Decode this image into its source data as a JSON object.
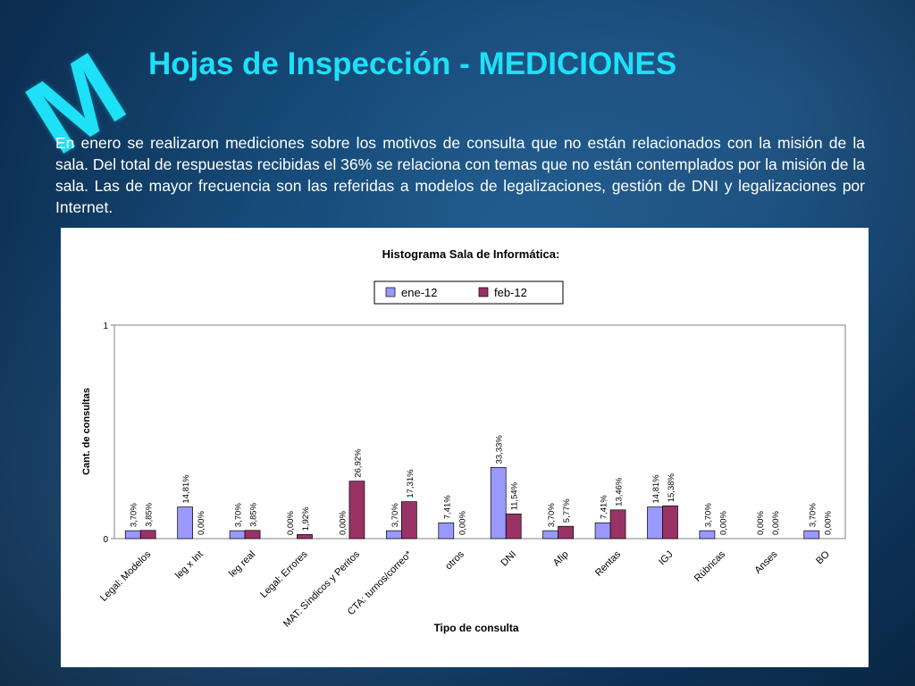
{
  "slide": {
    "logo_letter": "M",
    "title": "Hojas de Inspección - MEDICIONES",
    "paragraph": "En enero se realizaron mediciones sobre los motivos de consulta que no están relacionados con la misión de la sala. Del total de respuestas recibidas el 36% se relaciona con temas que no están contemplados por la misión de la sala. Las de mayor frecuencia son las referidas a modelos de legalizaciones, gestión de DNI y legalizaciones por Internet.",
    "colors": {
      "title": "#1ee0f7",
      "background": "#164a78"
    }
  },
  "chart_data": {
    "type": "bar",
    "title": "Histograma Sala de Informática:",
    "xlabel": "Tipo de consulta",
    "ylabel": "Cant. de consultas",
    "ylim": [
      0,
      1
    ],
    "yticks": [
      "0",
      "1"
    ],
    "grid": false,
    "legend_position": "top-center",
    "categories": [
      "Legal: Modelos",
      "leg x Int",
      "leg real",
      "Legal: Errores",
      "MAT: Síndicos y Peritos",
      "CTA: turnos/correo*",
      "otros",
      "DNI",
      "Afip",
      "Rentas",
      "IGJ",
      "Rúbricas",
      "Anses",
      "BO"
    ],
    "series": [
      {
        "name": "ene-12",
        "color": "#9999ff",
        "values": [
          0.037,
          0.1481,
          0.037,
          0.0,
          0.0,
          0.037,
          0.0741,
          0.3333,
          0.037,
          0.0741,
          0.1481,
          0.037,
          0.0,
          0.037
        ],
        "labels": [
          "3,70%",
          "14,81%",
          "3,70%",
          "0,00%",
          "0,00%",
          "3,70%",
          "7,41%",
          "33,33%",
          "3,70%",
          "7,41%",
          "14,81%",
          "3,70%",
          "0,00%",
          "3,70%"
        ]
      },
      {
        "name": "feb-12",
        "color": "#993366",
        "values": [
          0.0385,
          0.0,
          0.0385,
          0.0192,
          0.2692,
          0.1731,
          0.0,
          0.1154,
          0.0577,
          0.1346,
          0.1538,
          0.0,
          0.0,
          0.0
        ],
        "labels": [
          "3,85%",
          "0,00%",
          "3,85%",
          "1,92%",
          "26,92%",
          "17,31%",
          "0,00%",
          "11,54%",
          "5,77%",
          "13,46%",
          "15,38%",
          "0,00%",
          "0,00%",
          "0,00%"
        ]
      }
    ]
  }
}
